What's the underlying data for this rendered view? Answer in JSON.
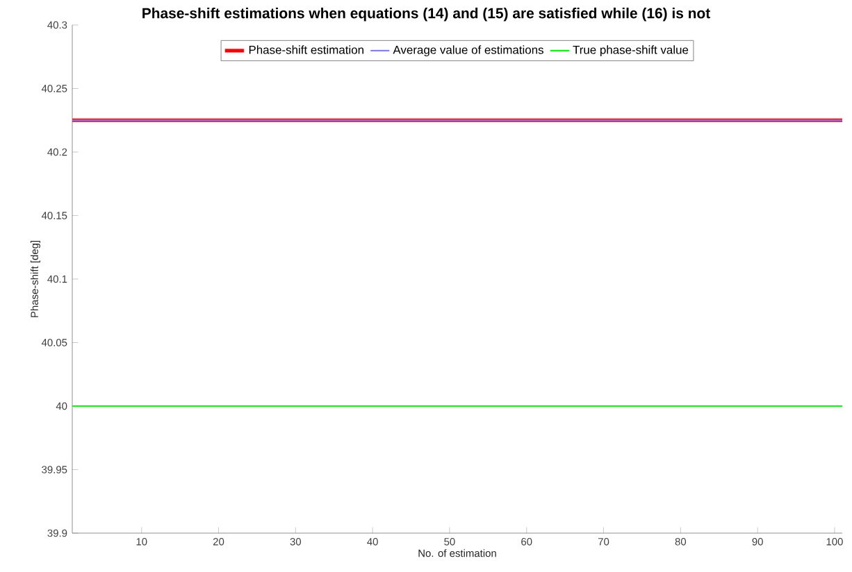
{
  "chart_data": {
    "type": "line",
    "title": "Phase-shift estimations when equations (14) and (15) are satisfied while (16) is not",
    "xlabel": "No. of estimation",
    "ylabel": "Phase-shift [deg]",
    "x": [
      1,
      101
    ],
    "series": [
      {
        "name": "Phase-shift estimation",
        "color": "#ff0000",
        "values": [
          40.225,
          40.225
        ]
      },
      {
        "name": "Average value of estimations",
        "color": "#8080ff",
        "values": [
          40.225,
          40.225
        ]
      },
      {
        "name": "True phase-shift value",
        "color": "#00ff00",
        "values": [
          40,
          40
        ]
      }
    ],
    "xlim": [
      1,
      101
    ],
    "xticks": [
      10,
      20,
      30,
      40,
      50,
      60,
      70,
      80,
      90,
      100
    ],
    "ylim": [
      39.9,
      40.3
    ],
    "yticks": [
      39.9,
      39.95,
      40,
      40.05,
      40.1,
      40.15,
      40.2,
      40.25,
      40.3
    ],
    "legend": "top",
    "marker": "none",
    "line_style": "solid",
    "grid": false
  }
}
